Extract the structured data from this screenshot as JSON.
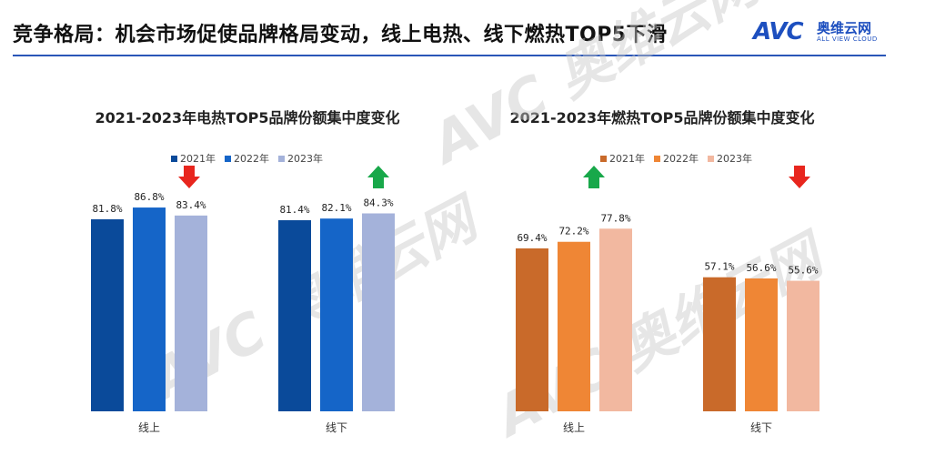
{
  "header": {
    "title": "竞争格局：机会市场促使品牌格局变动，线上电热、线下燃热TOP5下滑",
    "logo_mark": "AVC",
    "logo_cn": "奥维云网",
    "logo_en": "ALL VIEW CLOUD"
  },
  "legend_years": [
    "2021年",
    "2022年",
    "2023年"
  ],
  "colors": {
    "blue_2021": "#0a4a9a",
    "blue_2022": "#1565c8",
    "blue_2023": "#a4b2da",
    "orange_2021": "#c96a2a",
    "orange_2022": "#ef8635",
    "orange_2023": "#f2b8a0",
    "arrow_up": "#18a84a",
    "arrow_down": "#e8261e"
  },
  "chart_data": [
    {
      "type": "bar",
      "title": "2021-2023年电热TOP5品牌份额集中度变化",
      "categories": [
        "线上",
        "线下"
      ],
      "series": [
        {
          "name": "2021年",
          "values": [
            81.8,
            81.4
          ]
        },
        {
          "name": "2022年",
          "values": [
            86.8,
            82.1
          ]
        },
        {
          "name": "2023年",
          "values": [
            83.4,
            84.3
          ]
        }
      ],
      "labels": [
        [
          "81.8%",
          "86.8%",
          "83.4%"
        ],
        [
          "81.4%",
          "82.1%",
          "84.3%"
        ]
      ],
      "trend_arrows": [
        "down",
        "up"
      ],
      "ylim": [
        0,
        100
      ],
      "legend": "top-center",
      "grid": false
    },
    {
      "type": "bar",
      "title": "2021-2023年燃热TOP5品牌份额集中度变化",
      "categories": [
        "线上",
        "线下"
      ],
      "series": [
        {
          "name": "2021年",
          "values": [
            69.4,
            57.1
          ]
        },
        {
          "name": "2022年",
          "values": [
            72.2,
            56.6
          ]
        },
        {
          "name": "2023年",
          "values": [
            77.8,
            55.6
          ]
        }
      ],
      "labels": [
        [
          "69.4%",
          "72.2%",
          "77.8%"
        ],
        [
          "57.1%",
          "56.6%",
          "55.6%"
        ]
      ],
      "trend_arrows": [
        "up",
        "down"
      ],
      "ylim": [
        0,
        100
      ],
      "legend": "top-center",
      "grid": false
    }
  ]
}
